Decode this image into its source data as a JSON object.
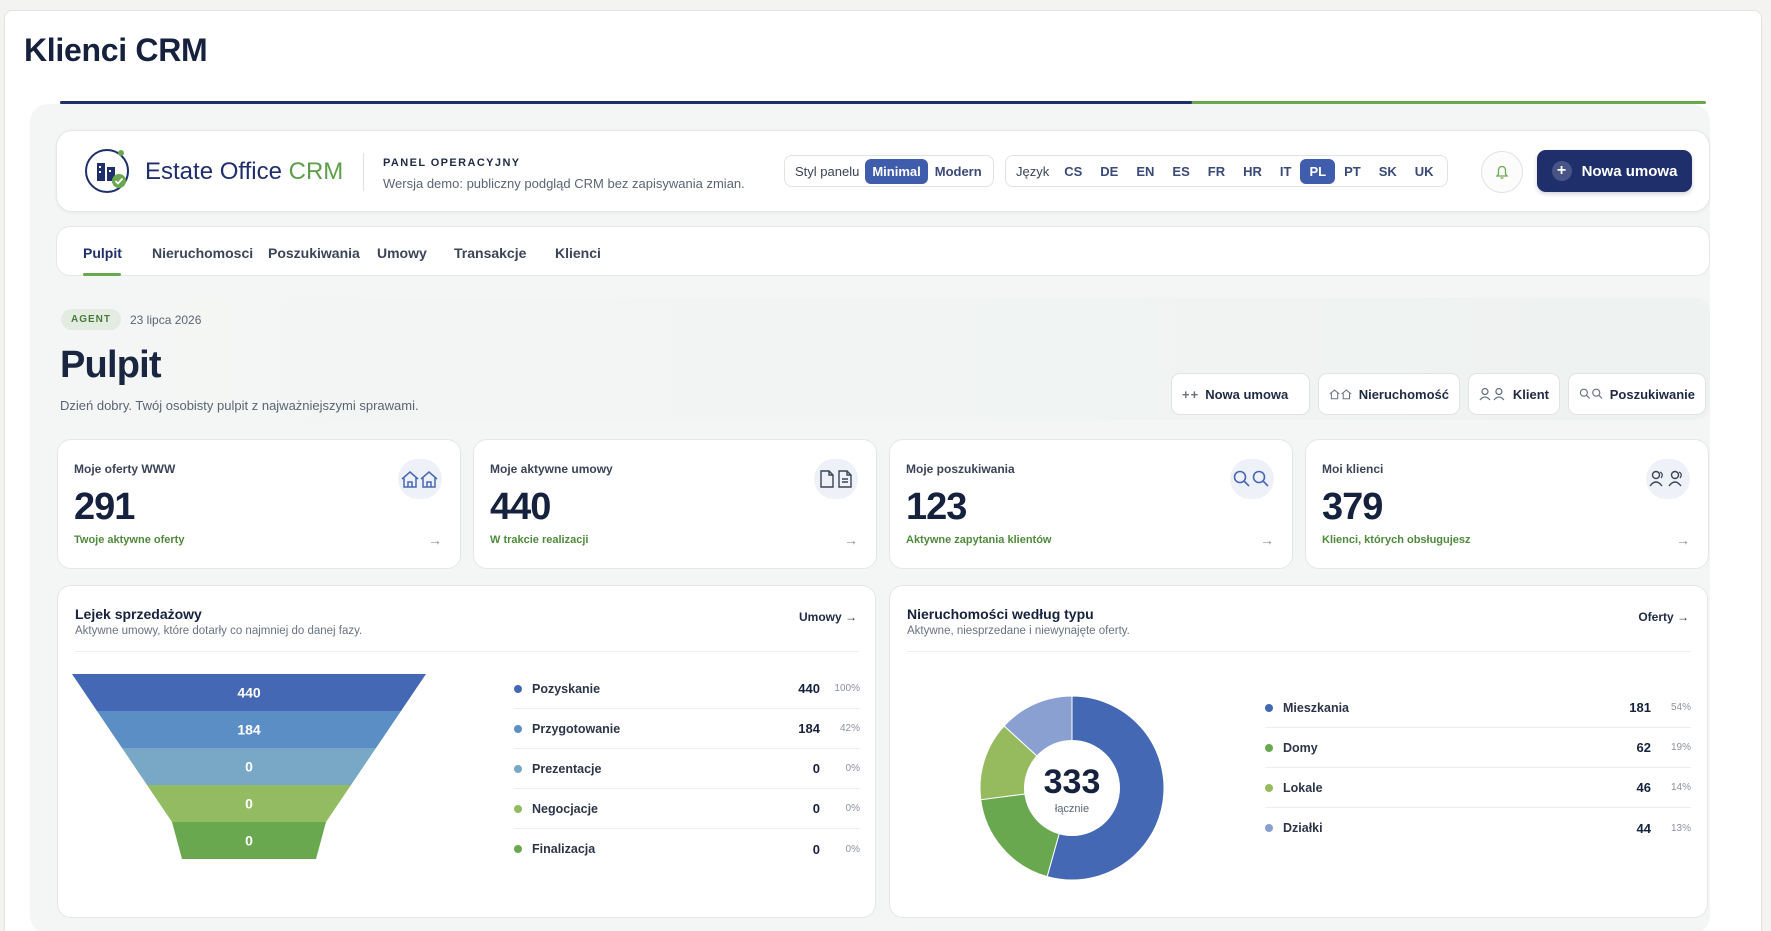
{
  "page": {
    "title": "Klienci CRM",
    "progress_fraction": 0.688
  },
  "header": {
    "logo_name": "Estate Office",
    "logo_accent": "CRM",
    "panel_label": "PANEL OPERACYJNY",
    "panel_sub": "Wersja demo: publiczny podgląd CRM bez zapisywania zmian.",
    "style_label": "Styl panelu",
    "style_options": [
      "Minimal",
      "Modern"
    ],
    "style_selected": "Minimal",
    "language_label": "Język",
    "languages": [
      "CS",
      "DE",
      "EN",
      "ES",
      "FR",
      "HR",
      "IT",
      "PL",
      "PT",
      "SK",
      "UK"
    ],
    "language_selected": "PL",
    "notification_icon": "bell-icon",
    "new_contract_label": "Nowa umowa"
  },
  "tabs": [
    {
      "label": "Pulpit",
      "active": true
    },
    {
      "label": "Nieruchomosci",
      "active": false
    },
    {
      "label": "Poszukiwania",
      "active": false
    },
    {
      "label": "Umowy",
      "active": false
    },
    {
      "label": "Transakcje",
      "active": false
    },
    {
      "label": "Klienci",
      "active": false
    }
  ],
  "hero": {
    "role": "AGENT",
    "date": "23 lipca 2026",
    "title": "Pulpit",
    "subtitle": "Dzień dobry. Twój osobisty pulpit z najważniejszymi sprawami.",
    "quick_actions": [
      {
        "label": "Nowa umowa",
        "icon": "plus-icon"
      },
      {
        "label": "Nieruchomość",
        "icon": "house-icon"
      },
      {
        "label": "Klient",
        "icon": "user-icon"
      },
      {
        "label": "Poszukiwanie",
        "icon": "search-icon"
      }
    ]
  },
  "stats": [
    {
      "label": "Moje oferty WWW",
      "value": "291",
      "sub": "Twoje aktywne oferty",
      "icon": "house-icon",
      "arrow": "→"
    },
    {
      "label": "Moje aktywne umowy",
      "value": "440",
      "sub": "W trakcie realizacji",
      "icon": "document-icon",
      "arrow": "→"
    },
    {
      "label": "Moje poszukiwania",
      "value": "123",
      "sub": "Aktywne zapytania klientów",
      "icon": "search-icon",
      "arrow": "→"
    },
    {
      "label": "Moi klienci",
      "value": "379",
      "sub": "Klienci, których obsługujesz",
      "icon": "users-icon",
      "arrow": "→"
    }
  ],
  "funnel_card": {
    "title": "Lejek sprzedażowy",
    "subtitle": "Aktywne umowy, które dotarły co najmniej do danej fazy.",
    "link": "Umowy →"
  },
  "donut_card": {
    "title": "Nieruchomości według typu",
    "subtitle": "Aktywne, niesprzedane i niewynajęte oferty.",
    "link": "Oferty →",
    "total": "333",
    "total_caption": "łącznie"
  },
  "chart_data": [
    {
      "type": "funnel",
      "categories": [
        "Pozyskanie",
        "Przygotowanie",
        "Prezentacje",
        "Negocjacje",
        "Finalizacja"
      ],
      "values": [
        440,
        184,
        0,
        0,
        0
      ],
      "percent_labels": [
        "100%",
        "42%",
        "0%",
        "0%",
        "0%"
      ],
      "colors": [
        "#4568b4",
        "#5c8ec6",
        "#79a8c6",
        "#92bb62",
        "#6aa84f"
      ],
      "title": "Lejek sprzedażowy"
    },
    {
      "type": "pie",
      "categories": [
        "Mieszkania",
        "Domy",
        "Lokale",
        "Działki"
      ],
      "values": [
        181,
        62,
        46,
        44
      ],
      "percent_labels": [
        "54%",
        "19%",
        "14%",
        "13%"
      ],
      "colors": [
        "#4568b4",
        "#6aa84f",
        "#95bb5e",
        "#8aa0d0"
      ],
      "title": "Nieruchomości według typu"
    }
  ]
}
